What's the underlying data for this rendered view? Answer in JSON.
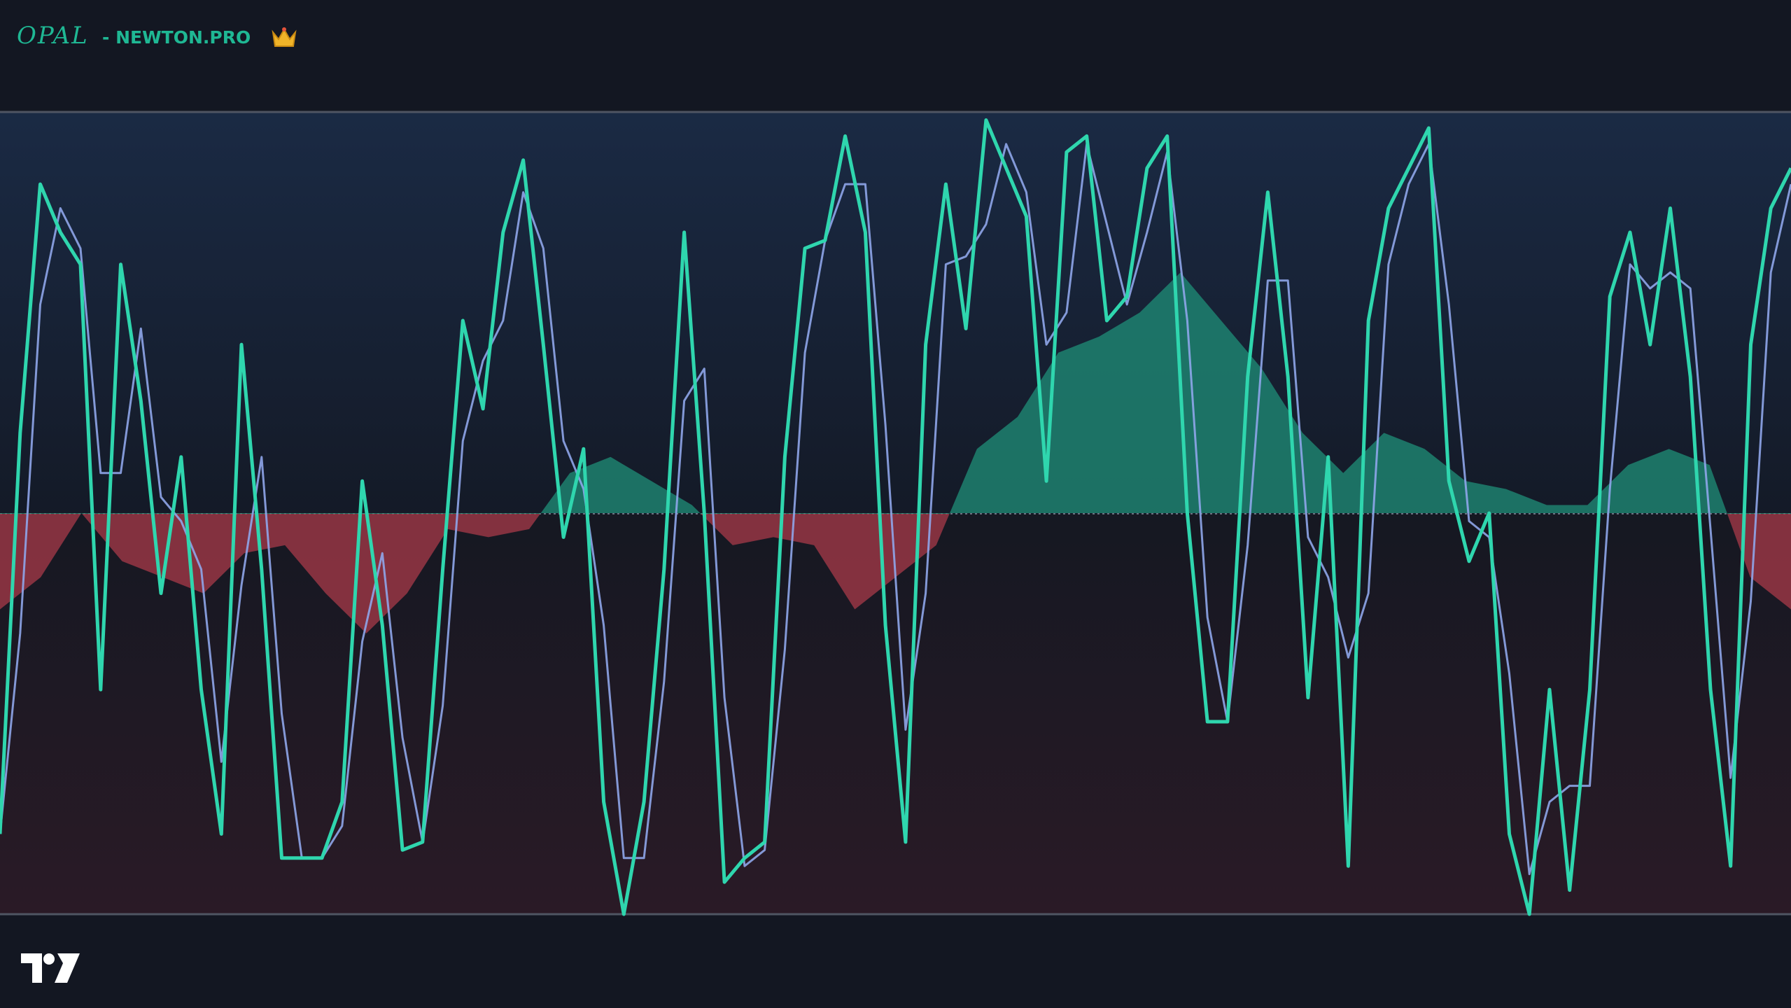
{
  "chart_data": {
    "type": "line",
    "title": "OPAL",
    "subtitle": "- NEWTON.PRO",
    "ylim": [
      0,
      100
    ],
    "y2lim": [
      -50,
      50
    ],
    "series": [
      {
        "color": "#2fd6ae",
        "values": [
          10,
          60,
          91,
          85,
          81,
          28,
          81,
          64,
          40,
          57,
          28,
          10,
          71,
          43,
          7,
          7,
          7,
          14,
          54,
          36,
          8,
          9,
          43,
          74,
          63,
          85,
          94,
          71,
          47,
          58,
          14,
          0,
          14,
          43,
          85,
          50,
          4,
          7,
          9,
          57,
          83,
          84,
          97,
          85,
          36,
          9,
          71,
          91,
          73,
          99,
          93,
          87,
          54,
          95,
          97,
          74,
          77,
          93,
          97,
          50,
          24,
          24,
          67,
          90,
          67,
          27,
          57,
          6,
          74,
          88,
          93,
          98,
          54,
          44,
          50,
          10,
          0,
          28,
          3,
          28,
          77,
          85,
          71,
          88,
          67,
          28,
          6,
          71,
          88,
          93
        ]
      },
      {
        "color": "#8fa6ea",
        "values": [
          10,
          35,
          76,
          88,
          83,
          55,
          55,
          73,
          52,
          49,
          43,
          19,
          41,
          57,
          25,
          7,
          7,
          11,
          34,
          45,
          22,
          9,
          26,
          59,
          69,
          74,
          90,
          83,
          59,
          53,
          36,
          7,
          7,
          29,
          64,
          68,
          27,
          6,
          8,
          33,
          70,
          84,
          91,
          91,
          61,
          23,
          40,
          81,
          82,
          86,
          96,
          90,
          71,
          75,
          96,
          86,
          76,
          85,
          95,
          74,
          37,
          24,
          46,
          79,
          79,
          47,
          42,
          32,
          40,
          81,
          91,
          96,
          76,
          49,
          47,
          30,
          5,
          14,
          16,
          16,
          53,
          81,
          78,
          80,
          78,
          48,
          17,
          39,
          80,
          91
        ]
      },
      {
        "type": "area",
        "axis": "y2",
        "color": "#1f8f78",
        "negative_color": "#a8394a",
        "values": [
          -12,
          -8,
          0,
          -6,
          -8,
          -10,
          -5,
          -4,
          -10,
          -15,
          -10,
          -2,
          -3,
          -2,
          5,
          7,
          4,
          1,
          -4,
          -3,
          -4,
          -12,
          -8,
          -4,
          8,
          12,
          20,
          22,
          25,
          30,
          24,
          18,
          10,
          5,
          10,
          8,
          4,
          3,
          1,
          1,
          6,
          8,
          6,
          -8,
          -12
        ]
      }
    ]
  }
}
